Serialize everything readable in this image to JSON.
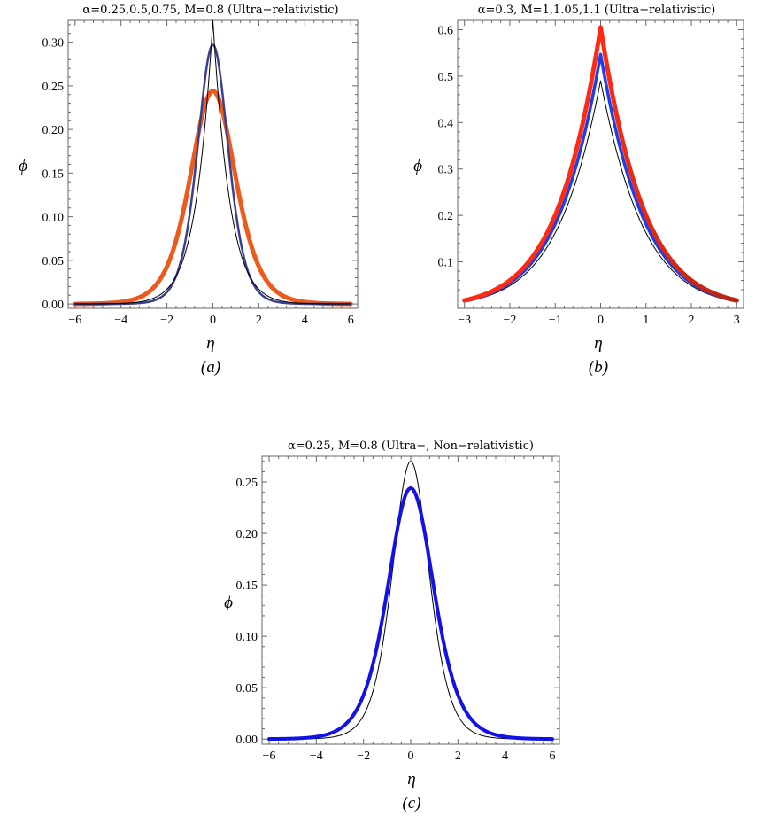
{
  "chart_data": [
    {
      "id": "a",
      "type": "line",
      "title": "α=0.25,0.5,0.75, M=0.8 (Ultra−relativistic)",
      "xlabel": "η",
      "ylabel": "ϕ",
      "caption": "(a)",
      "xlim": [
        -6.3,
        6.3
      ],
      "ylim": [
        -0.005,
        0.325
      ],
      "xticks": [
        -6,
        -4,
        -2,
        0,
        2,
        4,
        6
      ],
      "yticks": [
        0.0,
        0.05,
        0.1,
        0.15,
        0.2,
        0.25,
        0.3
      ],
      "xtick_labels": [
        "−6",
        "−4",
        "−2",
        "0",
        "2",
        "4",
        "6"
      ],
      "ytick_labels": [
        "0.00",
        "0.05",
        "0.10",
        "0.15",
        "0.20",
        "0.25",
        "0.30"
      ],
      "grid": false,
      "series": [
        {
          "color": "#ee5a1c",
          "width": 5,
          "peak": 0.244,
          "curve": "sech2",
          "halfwidth": 1.32,
          "x": [
            -6,
            -4,
            -2,
            -1,
            0,
            1,
            2,
            4,
            6
          ],
          "y": [
            0.003,
            0.021,
            0.101,
            0.183,
            0.244,
            0.183,
            0.101,
            0.021,
            0.003
          ]
        },
        {
          "color": "#3a3f94",
          "width": 2.5,
          "peak": 0.297,
          "curve": "sech2",
          "halfwidth": 0.9,
          "x": [
            -6,
            -4,
            -2,
            -1,
            0,
            1,
            2,
            4,
            6
          ],
          "y": [
            0.0005,
            0.006,
            0.06,
            0.165,
            0.297,
            0.165,
            0.06,
            0.006,
            0.0005
          ]
        },
        {
          "color": "#000000",
          "width": 1,
          "peak": 0.325,
          "curve": "cusp",
          "halfwidth": 0.62,
          "x": [
            -6,
            -4,
            -2,
            -1,
            0,
            1,
            2,
            4,
            6
          ],
          "y": [
            0.0,
            0.002,
            0.02,
            0.09,
            0.325,
            0.09,
            0.02,
            0.002,
            0.0
          ]
        }
      ]
    },
    {
      "id": "b",
      "type": "line",
      "title": "α=0.3, M=1,1.05,1.1 (Ultra−relativistic)",
      "xlabel": "η",
      "ylabel": "ϕ",
      "caption": "(b)",
      "xlim": [
        -3.15,
        3.15
      ],
      "ylim": [
        0.0,
        0.62
      ],
      "xticks": [
        -3,
        -2,
        -1,
        0,
        1,
        2,
        3
      ],
      "yticks": [
        0.1,
        0.2,
        0.3,
        0.4,
        0.5,
        0.6
      ],
      "xtick_labels": [
        "−3",
        "−2",
        "−1",
        "0",
        "1",
        "2",
        "3"
      ],
      "ytick_labels": [
        "0.1",
        "0.2",
        "0.3",
        "0.4",
        "0.5",
        "0.6"
      ],
      "grid": false,
      "series": [
        {
          "color": "#000000",
          "width": 1,
          "peak": 0.49,
          "curve": "cusp",
          "halfwidth": 0.78,
          "x": [
            -3,
            -2,
            -1,
            0,
            1,
            2,
            3
          ],
          "y": [
            0.017,
            0.055,
            0.17,
            0.49,
            0.17,
            0.055,
            0.017
          ]
        },
        {
          "color": "#1f3fe6",
          "width": 3.5,
          "peak": 0.547,
          "curve": "cusp",
          "halfwidth": 0.78,
          "x": [
            -3,
            -2,
            -1,
            0,
            1,
            2,
            3
          ],
          "y": [
            0.017,
            0.055,
            0.17,
            0.547,
            0.17,
            0.055,
            0.017
          ]
        },
        {
          "color": "#ff2a14",
          "color_right": "#b5250e",
          "width": 5,
          "peak": 0.605,
          "curve": "cusp",
          "halfwidth": 0.78,
          "x": [
            -3,
            -2,
            -1,
            0,
            1,
            2,
            3
          ],
          "y": [
            0.017,
            0.055,
            0.17,
            0.605,
            0.17,
            0.055,
            0.017
          ]
        }
      ]
    },
    {
      "id": "c",
      "type": "line",
      "title": "α=0.25, M=0.8 (Ultra−, Non−relativistic)",
      "xlabel": "η",
      "ylabel": "ϕ",
      "caption": "(c)",
      "xlim": [
        -6.3,
        6.3
      ],
      "ylim": [
        -0.005,
        0.275
      ],
      "xticks": [
        -6,
        -4,
        -2,
        0,
        2,
        4,
        6
      ],
      "yticks": [
        0.0,
        0.05,
        0.1,
        0.15,
        0.2,
        0.25
      ],
      "xtick_labels": [
        "−6",
        "−4",
        "−2",
        "0",
        "2",
        "4",
        "6"
      ],
      "ytick_labels": [
        "0.00",
        "0.05",
        "0.10",
        "0.15",
        "0.20",
        "0.25"
      ],
      "grid": false,
      "series": [
        {
          "color": "#000000",
          "width": 1,
          "peak": 0.27,
          "curve": "sech2",
          "halfwidth": 1.05,
          "x": [
            -6,
            -4,
            -2,
            -1,
            0,
            1,
            2,
            4,
            6
          ],
          "y": [
            0.0005,
            0.008,
            0.084,
            0.182,
            0.27,
            0.182,
            0.084,
            0.008,
            0.0005
          ]
        },
        {
          "color": "#1212e8",
          "width": 4,
          "peak": 0.244,
          "curve": "sech2",
          "halfwidth": 1.32,
          "x": [
            -6,
            -4,
            -2,
            -1,
            0,
            1,
            2,
            4,
            6
          ],
          "y": [
            0.003,
            0.021,
            0.101,
            0.183,
            0.244,
            0.183,
            0.101,
            0.021,
            0.003
          ]
        }
      ]
    }
  ]
}
